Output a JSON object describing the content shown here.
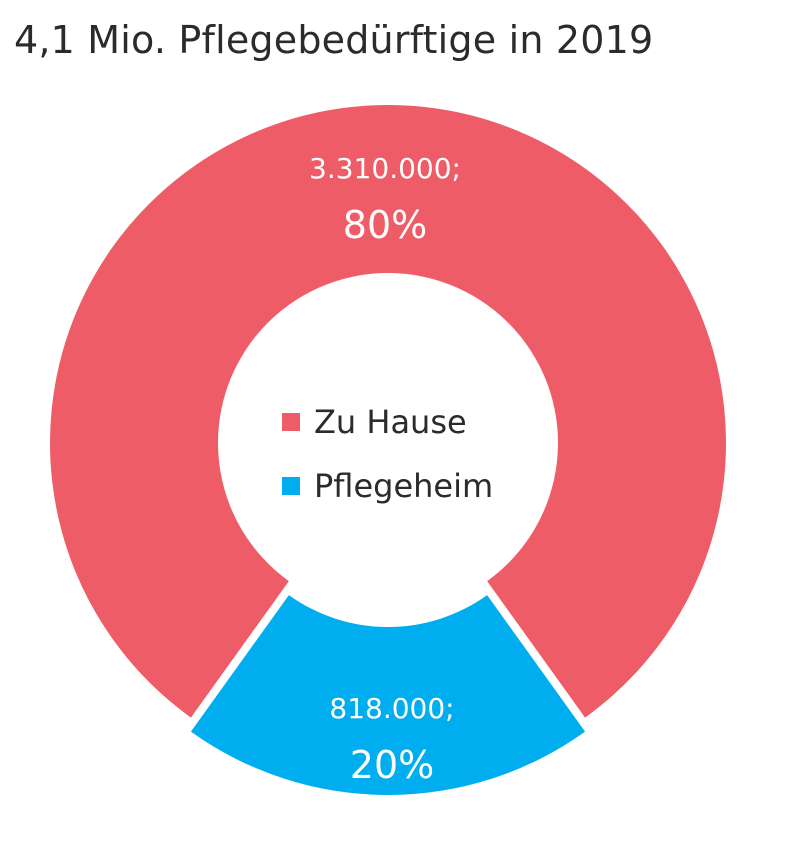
{
  "chart_data": {
    "type": "pie",
    "title": "4,1 Mio. Pflegebedürftige in 2019",
    "slices": [
      {
        "label": "Zu Hause",
        "value": 3310000,
        "value_label": "3.310.000;",
        "percent_label": "80%",
        "color": "#EE5D67"
      },
      {
        "label": "Pflegeheim",
        "value": 818000,
        "value_label": "818.000;",
        "percent_label": "20%",
        "color": "#00AEEF"
      }
    ],
    "donut": true,
    "legend_position": "center"
  }
}
